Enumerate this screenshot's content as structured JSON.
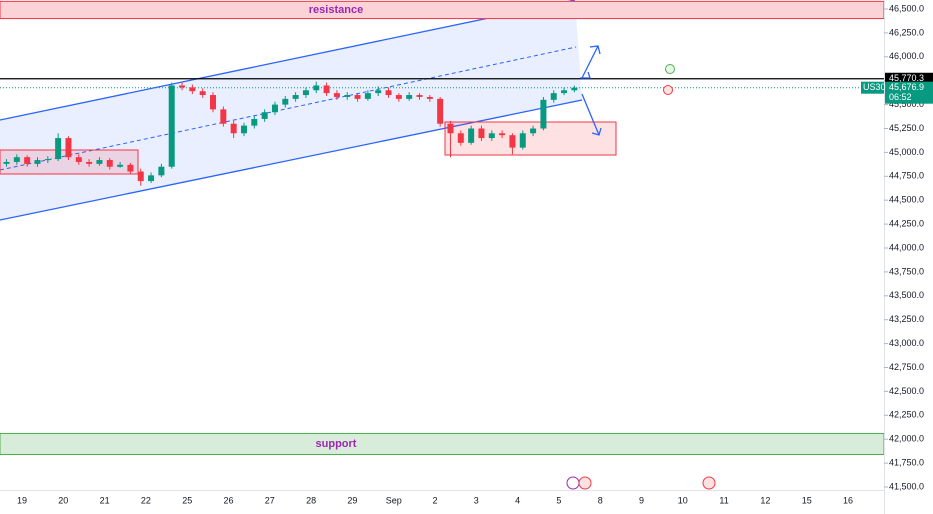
{
  "chart_data": {
    "type": "candlestick",
    "symbol": "US30",
    "categories": [
      "19",
      "20",
      "21",
      "22",
      "25",
      "26",
      "27",
      "28",
      "29",
      "Sep",
      "2",
      "3",
      "4",
      "5",
      "8",
      "9",
      "10",
      "11",
      "12",
      "15",
      "16"
    ],
    "candles": [
      [
        44880,
        44930,
        44850,
        44900
      ],
      [
        44900,
        44980,
        44870,
        44950
      ],
      [
        44950,
        44970,
        44850,
        44880
      ],
      [
        44880,
        44950,
        44850,
        44920
      ],
      [
        44920,
        44960,
        44890,
        44930
      ],
      [
        44930,
        45200,
        44910,
        45150
      ],
      [
        45150,
        45170,
        44920,
        44950
      ],
      [
        44950,
        44980,
        44870,
        44900
      ],
      [
        44900,
        44930,
        44850,
        44880
      ],
      [
        44880,
        44950,
        44860,
        44920
      ],
      [
        44920,
        44940,
        44820,
        44850
      ],
      [
        44850,
        44900,
        44840,
        44870
      ],
      [
        44870,
        44890,
        44770,
        44800
      ],
      [
        44800,
        44830,
        44650,
        44700
      ],
      [
        44700,
        44790,
        44680,
        44760
      ],
      [
        44760,
        44880,
        44740,
        44850
      ],
      [
        44850,
        45730,
        44830,
        45700
      ],
      [
        45700,
        45740,
        45650,
        45680
      ],
      [
        45680,
        45710,
        45610,
        45640
      ],
      [
        45640,
        45670,
        45570,
        45600
      ],
      [
        45600,
        45630,
        45420,
        45450
      ],
      [
        45450,
        45480,
        45270,
        45300
      ],
      [
        45300,
        45330,
        45150,
        45200
      ],
      [
        45200,
        45310,
        45170,
        45280
      ],
      [
        45280,
        45380,
        45250,
        45350
      ],
      [
        45350,
        45450,
        45320,
        45420
      ],
      [
        45420,
        45530,
        45390,
        45500
      ],
      [
        45500,
        45590,
        45470,
        45560
      ],
      [
        45560,
        45630,
        45530,
        45600
      ],
      [
        45600,
        45680,
        45570,
        45650
      ],
      [
        45650,
        45740,
        45620,
        45700
      ],
      [
        45700,
        45730,
        45590,
        45620
      ],
      [
        45620,
        45650,
        45550,
        45580
      ],
      [
        45580,
        45630,
        45550,
        45600
      ],
      [
        45600,
        45620,
        45530,
        45560
      ],
      [
        45560,
        45650,
        45540,
        45620
      ],
      [
        45620,
        45690,
        45590,
        45650
      ],
      [
        45650,
        45680,
        45570,
        45600
      ],
      [
        45600,
        45620,
        45530,
        45560
      ],
      [
        45560,
        45630,
        45540,
        45600
      ],
      [
        45600,
        45620,
        45550,
        45580
      ],
      [
        45580,
        45600,
        45530,
        45560
      ],
      [
        45560,
        45580,
        45270,
        45300
      ],
      [
        45300,
        45330,
        44950,
        45200
      ],
      [
        45200,
        45230,
        45070,
        45100
      ],
      [
        45100,
        45280,
        45080,
        45250
      ],
      [
        45250,
        45280,
        45120,
        45150
      ],
      [
        45150,
        45230,
        45120,
        45200
      ],
      [
        45200,
        45230,
        45150,
        45180
      ],
      [
        45180,
        45200,
        44980,
        45050
      ],
      [
        45050,
        45230,
        45030,
        45200
      ],
      [
        45200,
        45280,
        45170,
        45250
      ],
      [
        45250,
        45580,
        45230,
        45550
      ],
      [
        45550,
        45650,
        45520,
        45620
      ],
      [
        45620,
        45680,
        45600,
        45650
      ],
      [
        45650,
        45700,
        45630,
        45677
      ]
    ],
    "up_color": "#089981",
    "down_color": "#f23645",
    "ylim": [
      41500,
      46500
    ],
    "yticks": [
      {
        "value": 41500,
        "label": "41,500.0"
      },
      {
        "value": 41750,
        "label": "41,750.0"
      },
      {
        "value": 42000,
        "label": "42,000.0"
      },
      {
        "value": 42250,
        "label": "42,250.0"
      },
      {
        "value": 42500,
        "label": "42,500.0"
      },
      {
        "value": 42750,
        "label": "42,750.0"
      },
      {
        "value": 43000,
        "label": "43,000.0"
      },
      {
        "value": 43250,
        "label": "43,250.0"
      },
      {
        "value": 43500,
        "label": "43,500.0"
      },
      {
        "value": 43750,
        "label": "43,750.0"
      },
      {
        "value": 44000,
        "label": "44,000.0"
      },
      {
        "value": 44250,
        "label": "44,250.0"
      },
      {
        "value": 44500,
        "label": "44,500.0"
      },
      {
        "value": 44750,
        "label": "44,750.0"
      },
      {
        "value": 45000,
        "label": "45,000.0"
      },
      {
        "value": 45250,
        "label": "45,250.0"
      },
      {
        "value": 45500,
        "label": "45,500.0"
      },
      {
        "value": 45750,
        "label": "45,750.0"
      },
      {
        "value": 46000,
        "label": "46,000.0"
      },
      {
        "value": 46250,
        "label": "46,250.0"
      },
      {
        "value": 46500,
        "label": "46,500.0"
      }
    ],
    "level_line": {
      "value": 45770.3,
      "label": "45,770.3"
    },
    "last_price": {
      "value": 45676.9,
      "label": "45,676.9"
    },
    "countdown": "06:52",
    "resistance": {
      "label": "resistance",
      "range": [
        46400,
        46580
      ]
    },
    "support": {
      "label": "support",
      "range": [
        41840,
        42060
      ]
    }
  }
}
